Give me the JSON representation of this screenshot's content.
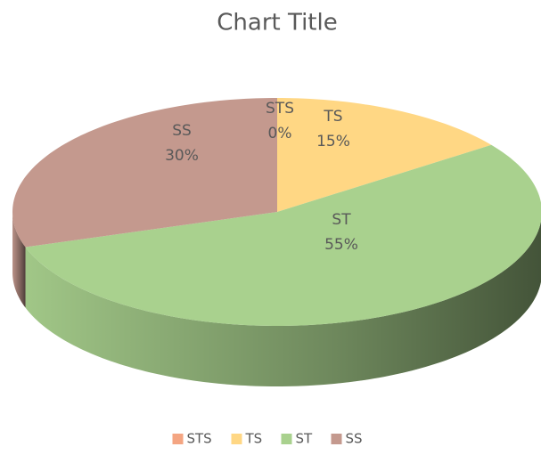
{
  "chart_data": {
    "type": "pie3d",
    "title": "Chart Title",
    "categories": [
      "STS",
      "TS",
      "ST",
      "SS"
    ],
    "values": [
      0,
      15,
      55,
      30
    ],
    "value_labels": [
      "0%",
      "15%",
      "55%",
      "30%"
    ],
    "colors": [
      "#f4a582",
      "#ffd784",
      "#a9d18e",
      "#c4998e"
    ],
    "legend": "bottom"
  }
}
